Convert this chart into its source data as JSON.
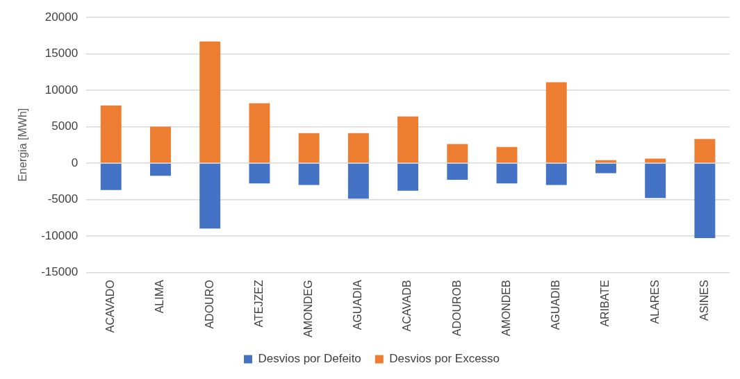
{
  "chart_data": {
    "type": "bar",
    "stacked": true,
    "ylabel": "Energia [MWh]",
    "categories": [
      "ACAVADO",
      "ALIMA",
      "ADOURO",
      "ATEJZEZ",
      "AMONDEG",
      "AGUADIA",
      "ACAVADB",
      "ADOUROB",
      "AMONDEB",
      "AGUADIB",
      "ARIBATE",
      "ALARES",
      "ASINES"
    ],
    "series": [
      {
        "name": "Desvios por Defeito",
        "color": "#4472c4",
        "values": [
          -3700,
          -1750,
          -9000,
          -2800,
          -3000,
          -4900,
          -3800,
          -2300,
          -2800,
          -3000,
          -1400,
          -4800,
          -10300
        ]
      },
      {
        "name": "Desvios por Excesso",
        "color": "#ed7d31",
        "values": [
          7900,
          5000,
          16700,
          8200,
          4100,
          4100,
          6400,
          2600,
          2200,
          11100,
          400,
          600,
          3300
        ]
      }
    ],
    "ylim": [
      -15000,
      20000
    ],
    "yticks": [
      -15000,
      -10000,
      -5000,
      0,
      5000,
      10000,
      15000,
      20000
    ],
    "grid": "y",
    "legend": "bottom"
  }
}
